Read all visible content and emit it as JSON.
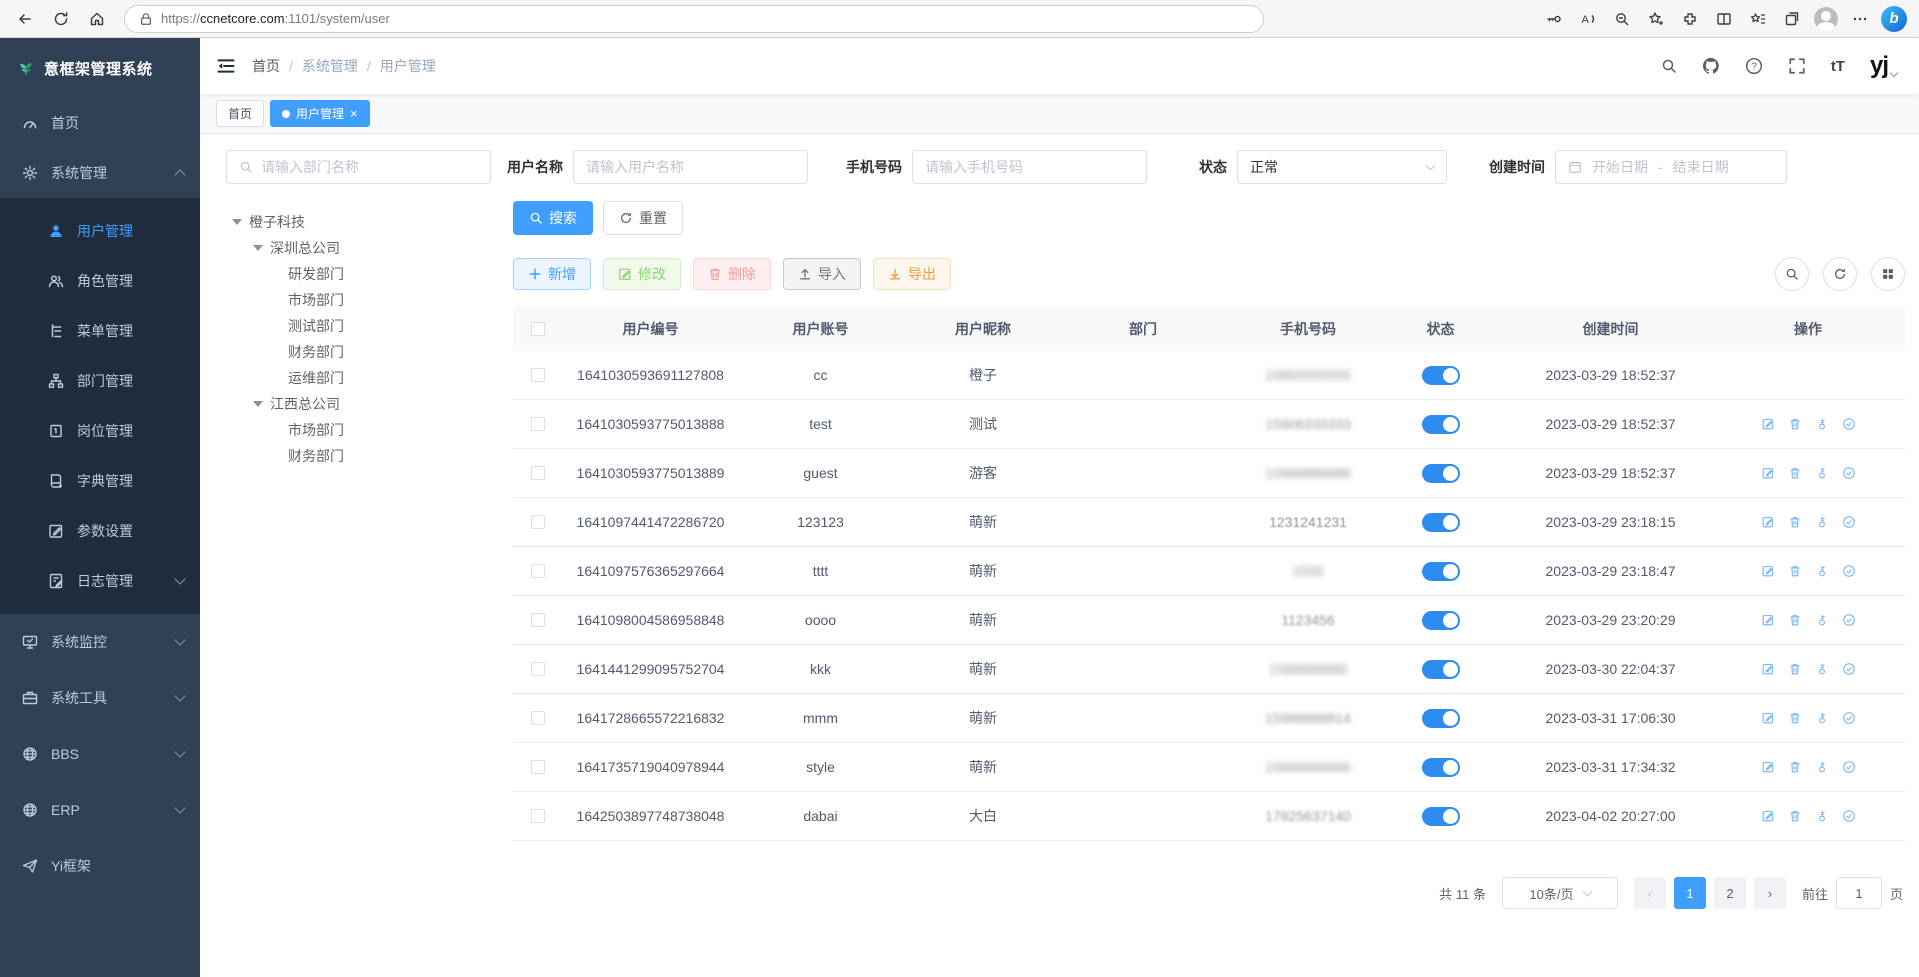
{
  "browser": {
    "url": {
      "scheme": "https://",
      "host": "ccnetcore.com",
      "path": ":1101/system/user"
    },
    "left_icons": [
      "back-icon",
      "refresh-icon",
      "home-icon"
    ],
    "right_icons": [
      "key-icon",
      "read-aloud-icon",
      "zoom-icon",
      "favorite-add-icon",
      "extensions-icon",
      "split-screen-icon",
      "favorites-bar-icon",
      "collections-icon",
      "profile-avatar",
      "more-icon",
      "bing-icon"
    ]
  },
  "sidebar": {
    "title": "意框架管理系统",
    "home": "首页",
    "system": "系统管理",
    "sub": [
      "用户管理",
      "角色管理",
      "菜单管理",
      "部门管理",
      "岗位管理",
      "字典管理",
      "参数设置",
      "日志管理"
    ],
    "monitor": "系统监控",
    "tools": "系统工具",
    "bbs": "BBS",
    "erp": "ERP",
    "yi": "Yi框架"
  },
  "header": {
    "breadcrumb": [
      "首页",
      "系统管理",
      "用户管理"
    ],
    "sep": "/",
    "logo": "yj"
  },
  "tabs": {
    "home": "首页",
    "active": "用户管理",
    "close": "×"
  },
  "filters": {
    "dept_placeholder": "请输入部门名称",
    "username_label": "用户名称",
    "username_placeholder": "请输入用户名称",
    "phone_label": "手机号码",
    "phone_placeholder": "请输入手机号码",
    "status_label": "状态",
    "status_value": "正常",
    "created_label": "创建时间",
    "date_start": "开始日期",
    "date_sep": "-",
    "date_end": "结束日期"
  },
  "buttons": {
    "search": "搜索",
    "reset": "重置",
    "add": "新增",
    "edit": "修改",
    "delete": "删除",
    "import": "导入",
    "export": "导出"
  },
  "tree": {
    "items": [
      {
        "label": "橙子科技",
        "level": 0,
        "caret": true
      },
      {
        "label": "深圳总公司",
        "level": 1,
        "caret": true
      },
      {
        "label": "研发部门",
        "level": 2,
        "caret": false
      },
      {
        "label": "市场部门",
        "level": 2,
        "caret": false
      },
      {
        "label": "测试部门",
        "level": 2,
        "caret": false
      },
      {
        "label": "财务部门",
        "level": 2,
        "caret": false
      },
      {
        "label": "运维部门",
        "level": 2,
        "caret": false
      },
      {
        "label": "江西总公司",
        "level": 1,
        "caret": true
      },
      {
        "label": "市场部门",
        "level": 2,
        "caret": false
      },
      {
        "label": "财务部门",
        "level": 2,
        "caret": false
      }
    ]
  },
  "table": {
    "columns": [
      "用户编号",
      "用户账号",
      "用户昵称",
      "部门",
      "手机号码",
      "状态",
      "创建时间",
      "操作"
    ],
    "rows": [
      {
        "id": "1641030593691127808",
        "account": "cc",
        "nickname": "橙子",
        "dept": "",
        "phone": "15855555555",
        "phone_blur": 3,
        "status": true,
        "created": "2023-03-29 18:52:37",
        "ops": false
      },
      {
        "id": "1641030593775013888",
        "account": "test",
        "nickname": "测试",
        "dept": "",
        "phone": "15906333333",
        "phone_blur": 2.4,
        "status": true,
        "created": "2023-03-29 18:52:37",
        "ops": true
      },
      {
        "id": "1641030593775013889",
        "account": "guest",
        "nickname": "游客",
        "dept": "",
        "phone": "15888888888",
        "phone_blur": 3,
        "status": true,
        "created": "2023-03-29 18:52:37",
        "ops": true
      },
      {
        "id": "1641097441472286720",
        "account": "123123",
        "nickname": "萌新",
        "dept": "",
        "phone": "1231241231",
        "phone_blur": 0.6,
        "status": true,
        "created": "2023-03-29 23:18:15",
        "ops": true
      },
      {
        "id": "1641097576365297664",
        "account": "tttt",
        "nickname": "萌新",
        "dept": "",
        "phone": "1555",
        "phone_blur": 3,
        "status": true,
        "created": "2023-03-29 23:18:47",
        "ops": true
      },
      {
        "id": "1641098004586958848",
        "account": "oooo",
        "nickname": "萌新",
        "dept": "",
        "phone": "1123456",
        "phone_blur": 1.2,
        "status": true,
        "created": "2023-03-29 23:20:29",
        "ops": true
      },
      {
        "id": "1641441299095752704",
        "account": "kkk",
        "nickname": "萌新",
        "dept": "",
        "phone": "1588888888",
        "phone_blur": 3,
        "status": true,
        "created": "2023-03-30 22:04:37",
        "ops": true
      },
      {
        "id": "1641728665572216832",
        "account": "mmm",
        "nickname": "萌新",
        "dept": "",
        "phone": "15988888814",
        "phone_blur": 2.2,
        "status": true,
        "created": "2023-03-31 17:06:30",
        "ops": true
      },
      {
        "id": "1641735719040978944",
        "account": "style",
        "nickname": "萌新",
        "dept": "",
        "phone": "15666666666",
        "phone_blur": 3,
        "status": true,
        "created": "2023-03-31 17:34:32",
        "ops": true
      },
      {
        "id": "1642503897748738048",
        "account": "dabai",
        "nickname": "大白",
        "dept": "",
        "phone": "17825637140",
        "phone_blur": 1.6,
        "status": true,
        "created": "2023-04-02 20:27:00",
        "ops": true
      }
    ]
  },
  "pagination": {
    "total": "共 11 条",
    "page_size": "10条/页",
    "pages": [
      "1",
      "2"
    ],
    "current": "1",
    "prev": "‹",
    "next": "›",
    "goto_label": "前往",
    "goto_value": "1",
    "unit": "页"
  },
  "colors": {
    "accent": "#409eff",
    "toggle_on": "#2d8cf0",
    "sidebar_bg": "#304156",
    "submenu_bg": "#1f2d3d"
  }
}
